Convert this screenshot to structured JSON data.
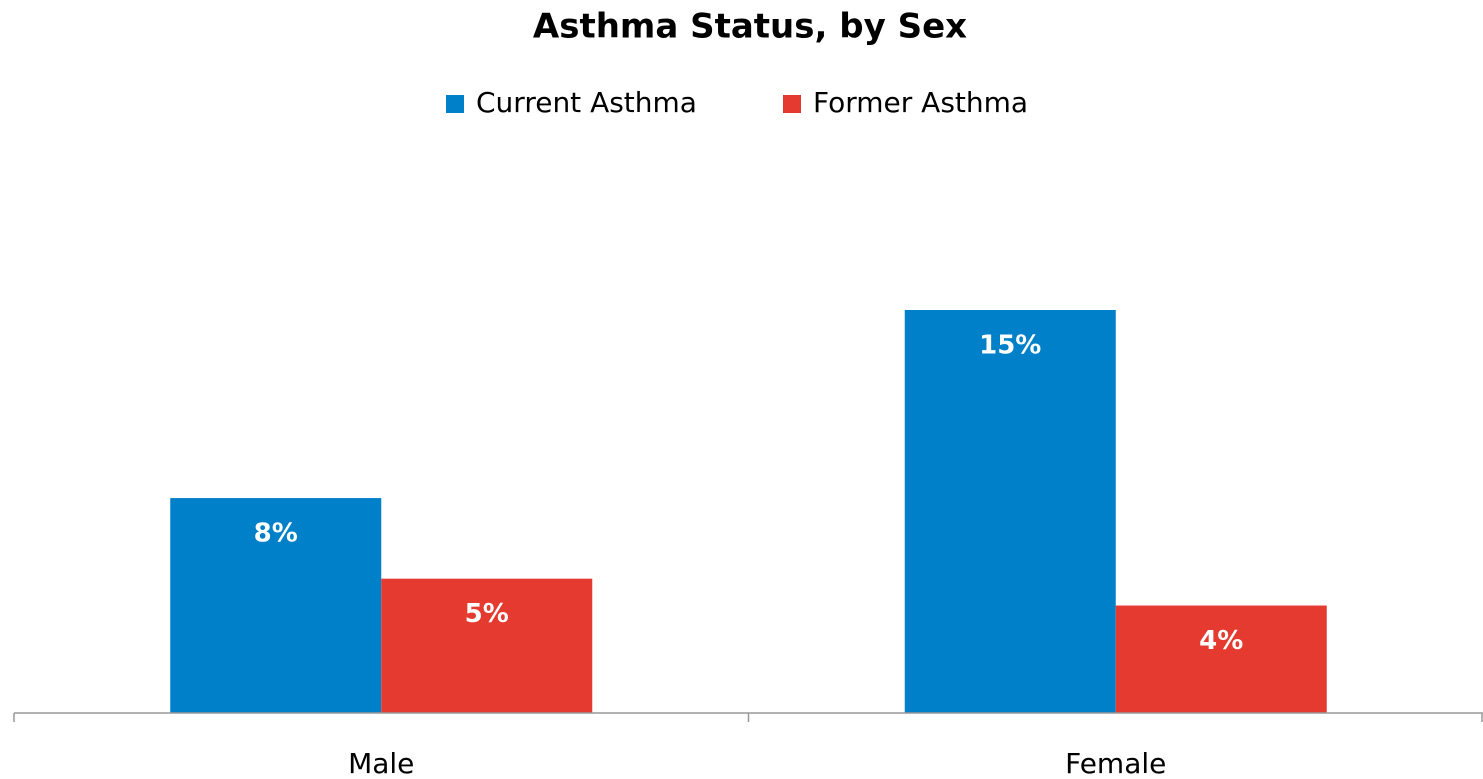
{
  "chart_data": {
    "type": "bar",
    "title": "Asthma Status, by Sex",
    "categories": [
      "Male",
      "Female"
    ],
    "series": [
      {
        "name": "Current Asthma",
        "color": "#0080c8",
        "values": [
          8,
          15
        ],
        "value_labels": [
          "8%",
          "15%"
        ]
      },
      {
        "name": "Former Asthma",
        "color": "#e43a2f",
        "values": [
          5,
          4
        ],
        "value_labels": [
          "5%",
          "4%"
        ]
      }
    ],
    "legend": "top"
  }
}
